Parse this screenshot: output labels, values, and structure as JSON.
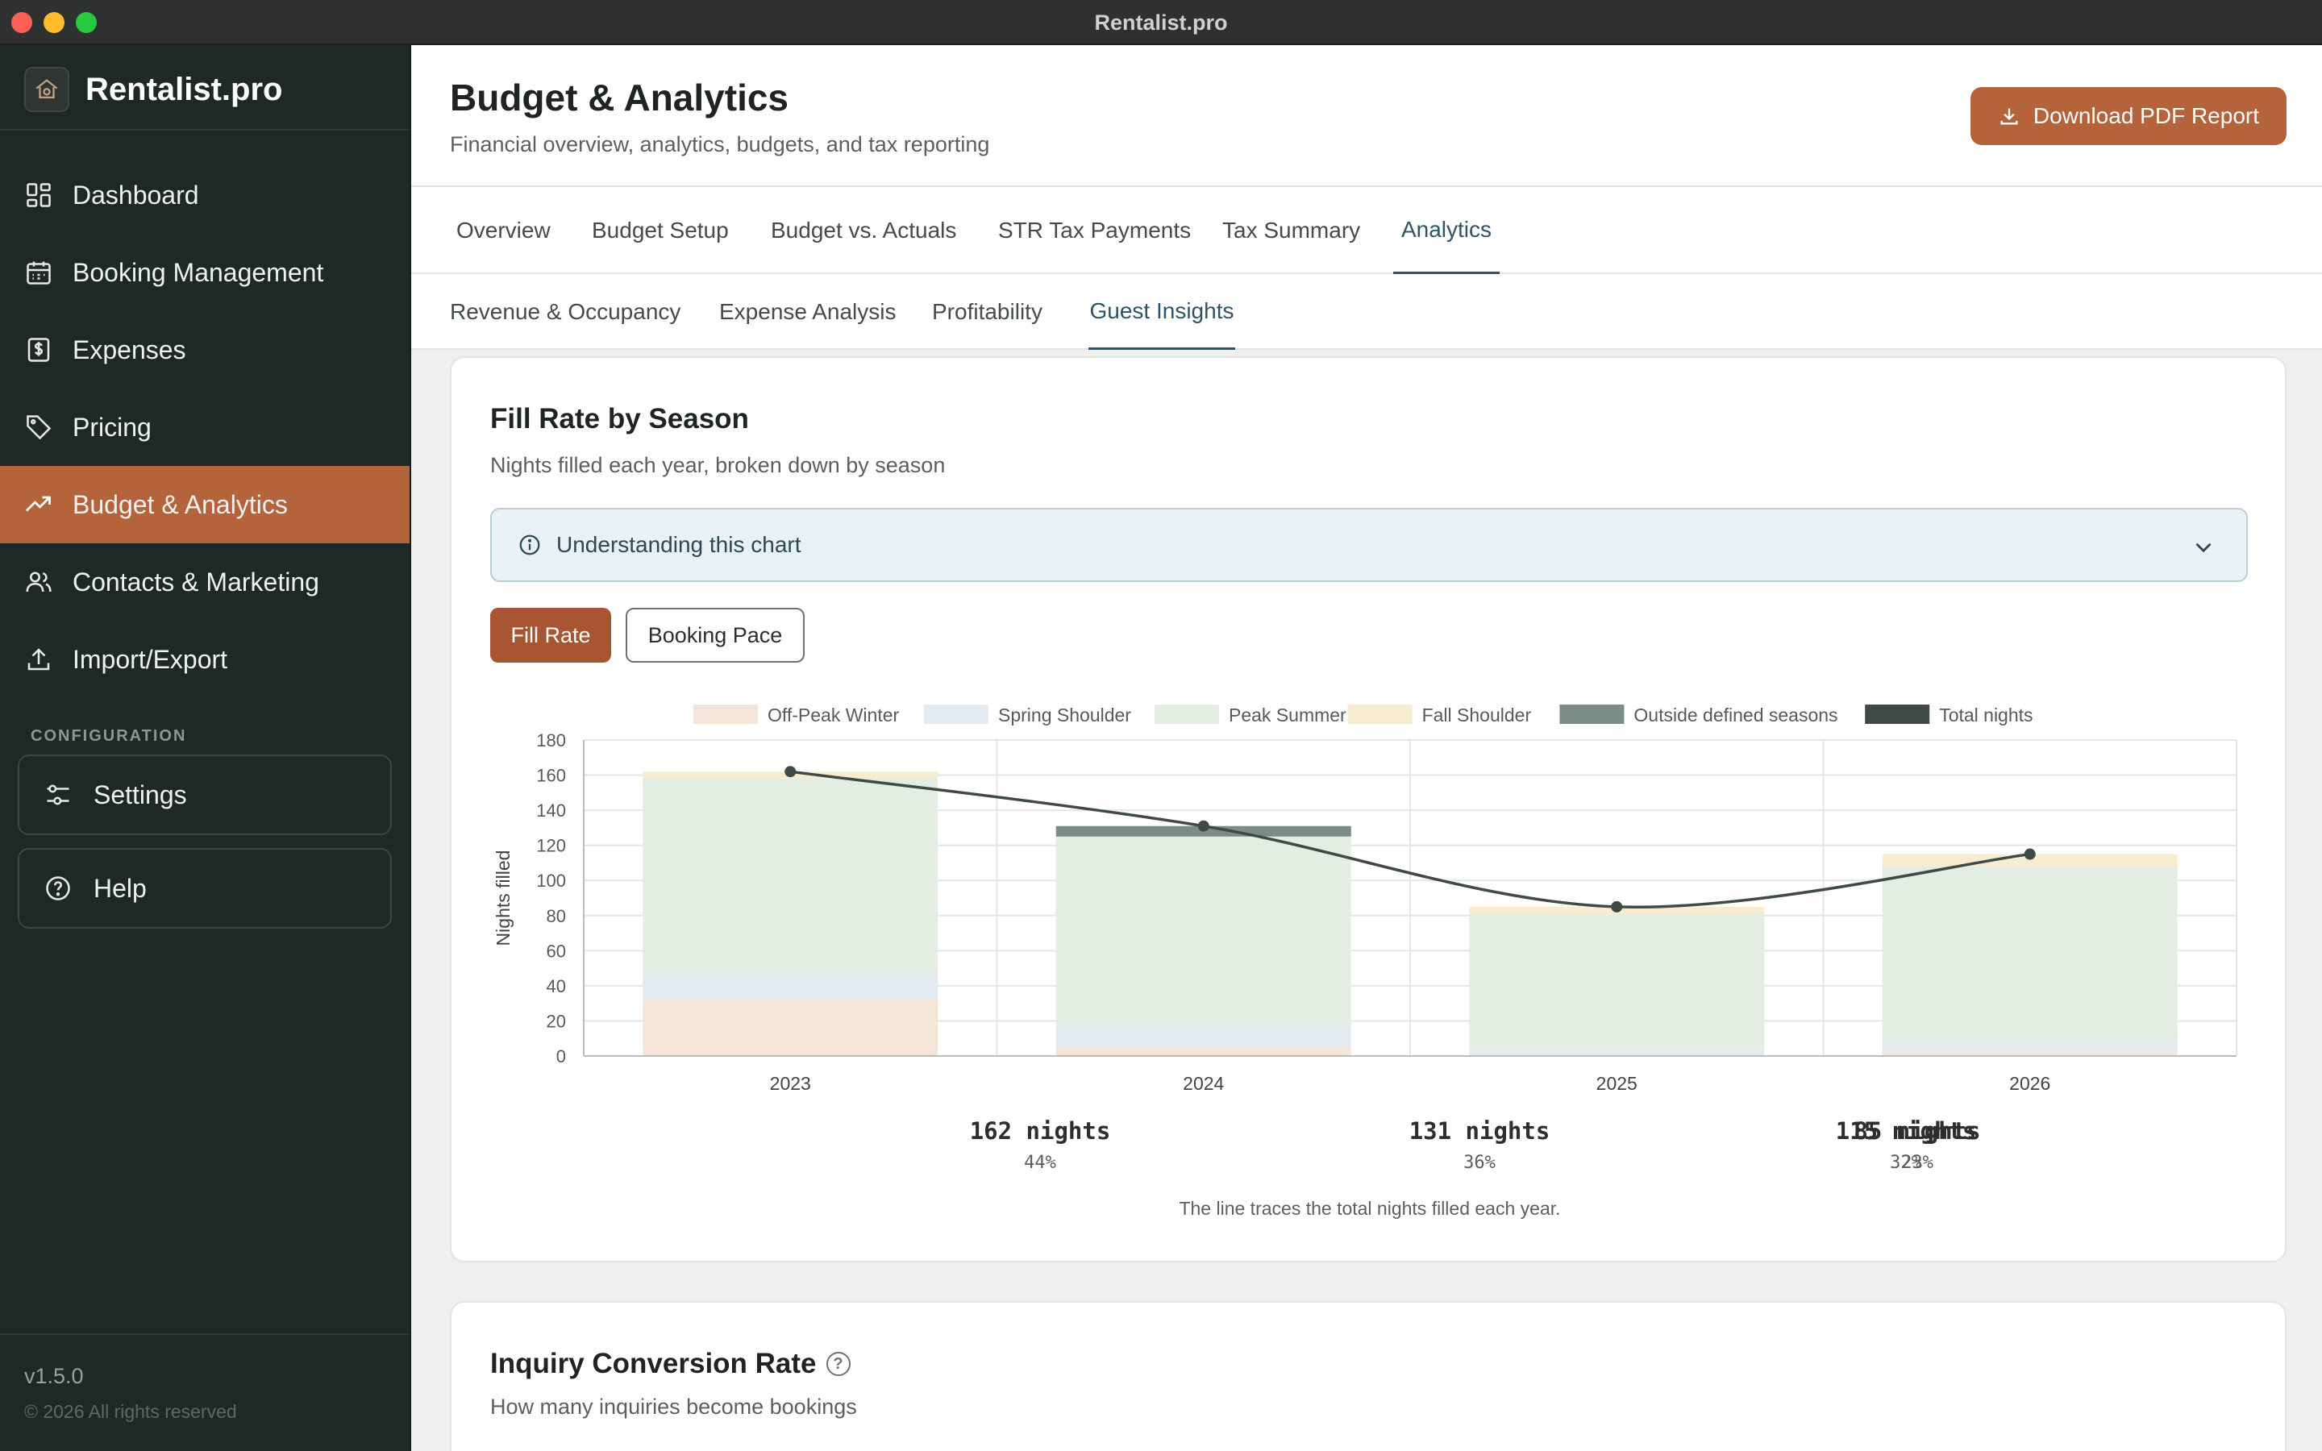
{
  "window": {
    "title": "Rentalist.pro"
  },
  "sidebar": {
    "brand": "Rentalist.pro",
    "items": [
      {
        "label": "Dashboard",
        "icon": "dashboard-icon"
      },
      {
        "label": "Booking Management",
        "icon": "calendar-icon"
      },
      {
        "label": "Expenses",
        "icon": "receipt-icon"
      },
      {
        "label": "Pricing",
        "icon": "tag-icon"
      },
      {
        "label": "Budget & Analytics",
        "icon": "trend-icon",
        "active": true
      },
      {
        "label": "Contacts & Marketing",
        "icon": "users-icon"
      },
      {
        "label": "Import/Export",
        "icon": "upload-icon"
      }
    ],
    "config_label": "CONFIGURATION",
    "settings_label": "Settings",
    "help_label": "Help",
    "version": "v1.5.0",
    "copyright": "© 2026 All rights reserved"
  },
  "header": {
    "title": "Budget & Analytics",
    "subtitle": "Financial overview, analytics, budgets, and tax reporting",
    "download_label": "Download PDF Report"
  },
  "tabs": [
    "Overview",
    "Budget Setup",
    "Budget vs. Actuals",
    "STR Tax Payments",
    "Tax Summary",
    "Analytics"
  ],
  "active_tab": "Analytics",
  "subtabs": [
    "Revenue & Occupancy",
    "Expense Analysis",
    "Profitability",
    "Guest Insights"
  ],
  "active_subtab": "Guest Insights",
  "fill_rate_card": {
    "title": "Fill Rate by Season",
    "subtitle": "Nights filled each year, broken down by season",
    "info_label": "Understanding this chart",
    "toggle_fill": "Fill Rate",
    "toggle_pace": "Booking Pace",
    "note": "The line traces the total nights filled each year.",
    "totals": [
      {
        "nights": "162 nights",
        "pct": "44%"
      },
      {
        "nights": "131 nights",
        "pct": "36%"
      },
      {
        "nights": "85 nights",
        "pct": "23%"
      },
      {
        "nights": "115 nights",
        "pct": "32%"
      }
    ]
  },
  "chart_data": {
    "type": "bar",
    "stacked": true,
    "categories": [
      "2023",
      "2024",
      "2025",
      "2026"
    ],
    "series": [
      {
        "name": "Off-Peak Winter",
        "color": "#f5e4d8",
        "values": [
          32,
          5,
          0,
          2
        ]
      },
      {
        "name": "Spring Shoulder",
        "color": "#e3ebf0",
        "values": [
          16,
          14,
          4,
          6
        ]
      },
      {
        "name": "Peak Summer",
        "color": "#e3ede2",
        "values": [
          110,
          106,
          77,
          100
        ]
      },
      {
        "name": "Fall Shoulder",
        "color": "#f8ecd0",
        "values": [
          4,
          0,
          4,
          7
        ]
      },
      {
        "name": "Outside defined seasons",
        "color": "#7b8b85",
        "values": [
          0,
          6,
          0,
          0
        ]
      }
    ],
    "line": {
      "name": "Total nights",
      "color": "#3f4a47",
      "values": [
        162,
        131,
        85,
        115
      ]
    },
    "ylabel": "Nights filled",
    "ylim": [
      0,
      180
    ],
    "yticks": [
      0,
      20,
      40,
      60,
      80,
      100,
      120,
      140,
      160,
      180
    ],
    "legend": "top",
    "grid": true
  },
  "conversion_card": {
    "title": "Inquiry Conversion Rate",
    "subtitle": "How many inquiries become bookings"
  }
}
